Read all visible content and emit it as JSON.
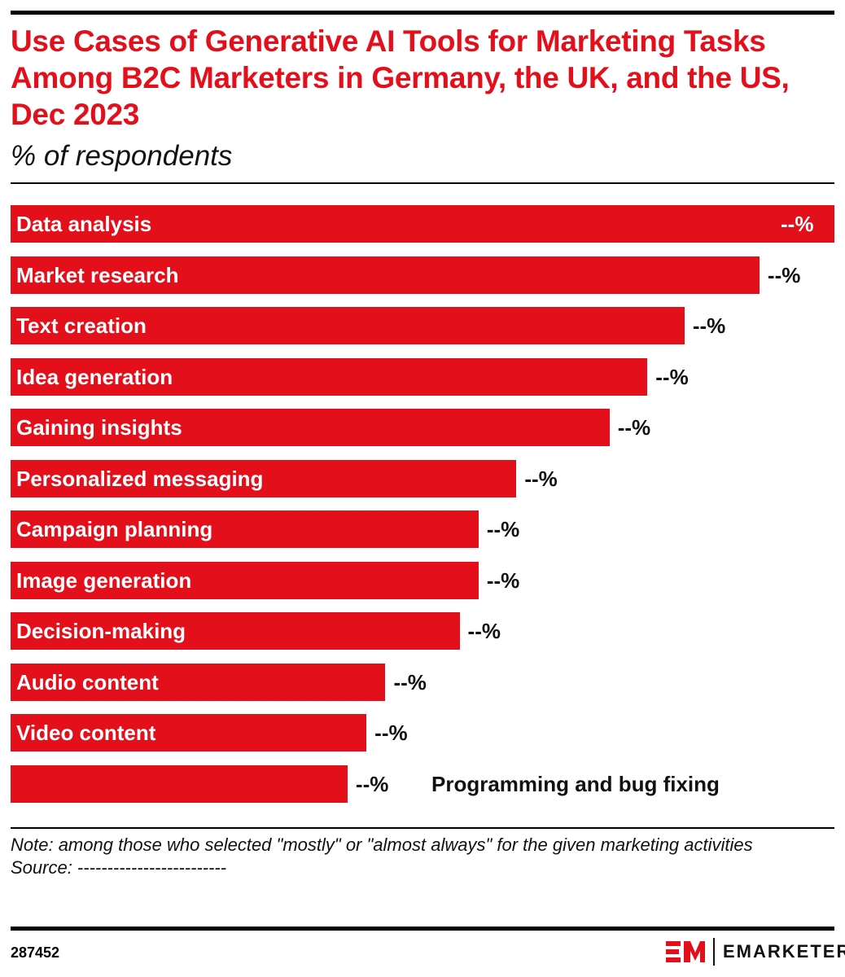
{
  "header": {
    "title": "Use Cases of Generative AI Tools for Marketing Tasks Among B2C Marketers in Germany, the UK, and the US, Dec 2023",
    "subtitle": "% of respondents"
  },
  "chart_data": {
    "type": "bar",
    "orientation": "horizontal",
    "categories": [
      "Data analysis",
      "Market research",
      "Text creation",
      "Idea generation",
      "Gaining insights",
      "Personalized messaging",
      "Campaign planning",
      "Image generation",
      "Decision-making",
      "Audio content",
      "Video content",
      "Programming and bug fixing"
    ],
    "value_labels": [
      "--%",
      "--%",
      "--%",
      "--%",
      "--%",
      "--%",
      "--%",
      "--%",
      "--%",
      "--%",
      "--%",
      "--%"
    ],
    "relative_values": [
      1.0,
      0.909,
      0.818,
      0.773,
      0.727,
      0.614,
      0.568,
      0.568,
      0.545,
      0.455,
      0.432,
      0.409
    ],
    "bar_color": "#e3101b",
    "grid": false,
    "legend": "none"
  },
  "footer": {
    "note": "Note: among those who selected \"mostly\" or \"almost always\" for the given marketing activities",
    "source": "Source: -------------------------",
    "id": "287452",
    "logo_mark": "EM",
    "logo_text": "EMARKETER"
  }
}
